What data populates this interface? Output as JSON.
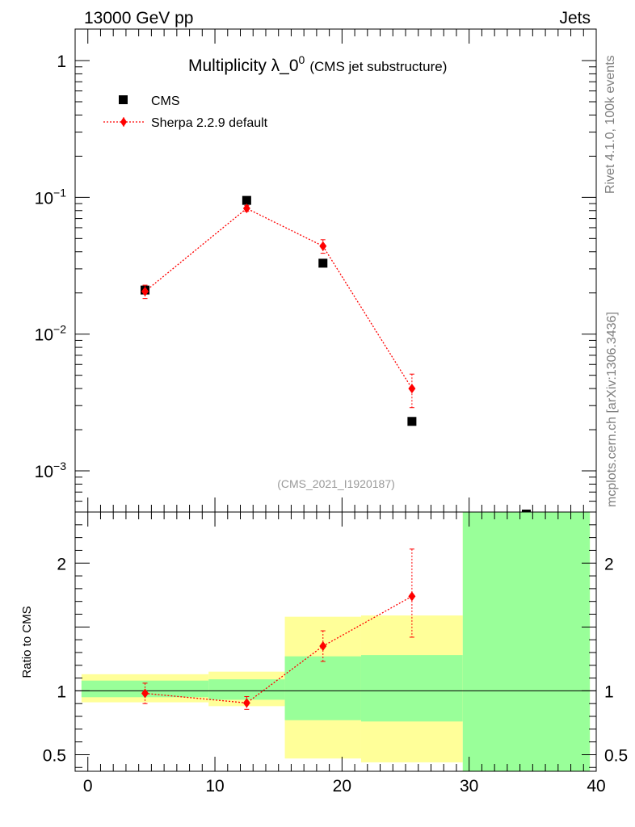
{
  "header": {
    "left": "13000 GeV pp",
    "right": "Jets"
  },
  "plot": {
    "title": "Multiplicity λ_0",
    "title_sup": "0",
    "title_suffix": "(CMS jet substructure)",
    "analysis_id": "(CMS_2021_I1920187)",
    "side_top": "Rivet 4.1.0,  100k events",
    "side_bottom": "mcplots.cern.ch [arXiv:1306.3436]",
    "ratio_ylabel": "Ratio to CMS"
  },
  "legend": {
    "entries": [
      "CMS",
      "Sherpa 2.2.9 default"
    ]
  },
  "colors": {
    "data": "#000000",
    "mc": "#ff0000",
    "band_inner": "#99ff99",
    "band_outer": "#ffff99"
  },
  "chart_data": [
    {
      "type": "scatter",
      "panel": "main",
      "title": "Multiplicity λ_0^0 (CMS jet substructure)",
      "yscale": "log",
      "xlim": [
        -1,
        40
      ],
      "ylim": [
        0.0005,
        1.7
      ],
      "yticks": [
        {
          "value": 1,
          "base": "1",
          "exp": ""
        },
        {
          "value": 0.1,
          "base": "10",
          "exp": "−1"
        },
        {
          "value": 0.01,
          "base": "10",
          "exp": "−2"
        },
        {
          "value": 0.001,
          "base": "10",
          "exp": "−3"
        }
      ],
      "series": [
        {
          "name": "CMS",
          "style": "square",
          "x": [
            4.5,
            12.5,
            18.5,
            25.5,
            34.5
          ],
          "y": [
            0.021,
            0.095,
            0.033,
            0.0023,
            0.0005
          ]
        },
        {
          "name": "Sherpa 2.2.9 default",
          "style": "diamond-dotted",
          "x": [
            4.5,
            12.5,
            18.5,
            25.5
          ],
          "y": [
            0.0205,
            0.083,
            0.044,
            0.004
          ],
          "yerr_low": [
            0.0023,
            0.004,
            0.005,
            0.0011
          ],
          "yerr_high": [
            0.0023,
            0.004,
            0.005,
            0.0011
          ]
        }
      ]
    },
    {
      "type": "scatter",
      "panel": "ratio",
      "ylabel": "Ratio to CMS",
      "xlim": [
        -1,
        40
      ],
      "ylim": [
        0.37,
        2.4
      ],
      "xticks": [
        0,
        10,
        20,
        30,
        40
      ],
      "yticks": [
        {
          "value": 2,
          "label": "2"
        },
        {
          "value": 1,
          "label": "1"
        },
        {
          "value": 0.5,
          "label": "0.5"
        }
      ],
      "bands": [
        {
          "x0": -0.5,
          "x1": 9.5,
          "inner": [
            0.95,
            1.08
          ],
          "outer": [
            0.91,
            1.13
          ]
        },
        {
          "x0": 9.5,
          "x1": 15.5,
          "inner": [
            0.93,
            1.09
          ],
          "outer": [
            0.88,
            1.15
          ]
        },
        {
          "x0": 15.5,
          "x1": 21.5,
          "inner": [
            0.77,
            1.27
          ],
          "outer": [
            0.47,
            1.58
          ]
        },
        {
          "x0": 21.5,
          "x1": 29.5,
          "inner": [
            0.76,
            1.28
          ],
          "outer": [
            0.44,
            1.59
          ]
        },
        {
          "x0": 29.5,
          "x1": 39.5,
          "inner": [
            0.37,
            2.4
          ],
          "outer": [
            0.37,
            2.4
          ]
        }
      ],
      "series": [
        {
          "name": "Sherpa 2.2.9 default",
          "x": [
            4.5,
            12.5,
            18.5,
            25.5
          ],
          "y": [
            0.98,
            0.905,
            1.35,
            1.74
          ],
          "yerr_low": [
            0.08,
            0.05,
            0.12,
            0.32
          ],
          "yerr_high": [
            0.08,
            0.05,
            0.12,
            0.37
          ]
        }
      ]
    }
  ]
}
